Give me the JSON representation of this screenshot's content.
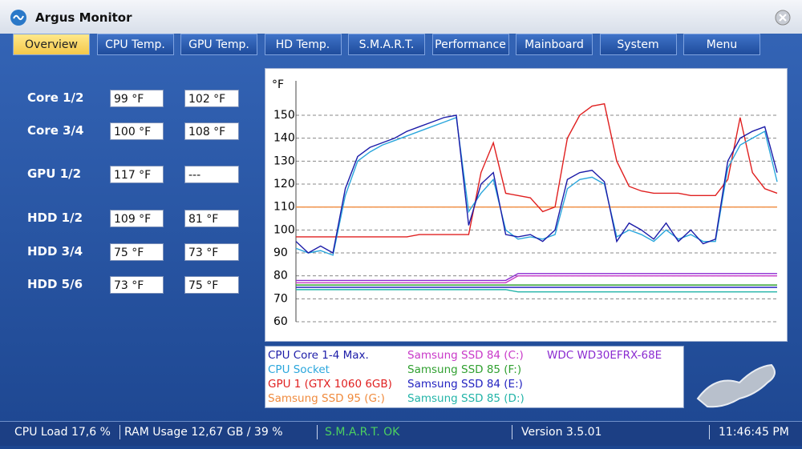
{
  "title": "Argus Monitor",
  "tabs": [
    "Overview",
    "CPU Temp.",
    "GPU Temp.",
    "HD Temp.",
    "S.M.A.R.T.",
    "Performance",
    "Mainboard",
    "System",
    "Menu"
  ],
  "sensors": [
    {
      "label": "Core 1/2",
      "values": [
        "99 °F",
        "102 °F"
      ]
    },
    {
      "label": "Core 3/4",
      "values": [
        "100 °F",
        "108 °F"
      ]
    },
    {
      "label": "GPU 1/2",
      "values": [
        "117 °F",
        "---"
      ]
    },
    {
      "label": "HDD 1/2",
      "values": [
        "109 °F",
        "81 °F"
      ]
    },
    {
      "label": "HDD 3/4",
      "values": [
        "75 °F",
        "73 °F"
      ]
    },
    {
      "label": "HDD 5/6",
      "values": [
        "73 °F",
        "75 °F"
      ]
    }
  ],
  "chart_data": {
    "type": "line",
    "ylabel": "°F",
    "ylim": [
      60,
      165
    ],
    "yticks": [
      60,
      70,
      80,
      90,
      100,
      110,
      120,
      130,
      140,
      150
    ],
    "grid": true,
    "series": [
      {
        "name": "CPU Core 1-4 Max.",
        "color": "#1c1ca8",
        "values": [
          95,
          90,
          93,
          90,
          118,
          132,
          136,
          138,
          140,
          143,
          145,
          147,
          149,
          150,
          102,
          120,
          125,
          98,
          97,
          98,
          95,
          100,
          122,
          125,
          126,
          121,
          95,
          103,
          100,
          96,
          103,
          95,
          100,
          94,
          96,
          130,
          140,
          143,
          145,
          125
        ]
      },
      {
        "name": "CPU Socket",
        "color": "#2aa6dc",
        "values": [
          92,
          90,
          91,
          89,
          115,
          130,
          134,
          137,
          139,
          141,
          143,
          145,
          147,
          149,
          108,
          116,
          122,
          100,
          96,
          97,
          96,
          98,
          118,
          122,
          123,
          120,
          97,
          100,
          98,
          95,
          100,
          96,
          98,
          95,
          95,
          127,
          137,
          140,
          143,
          121
        ]
      },
      {
        "name": "GPU 1 (GTX 1060 6GB)",
        "color": "#e02020",
        "values": [
          97,
          97,
          97,
          97,
          97,
          97,
          97,
          97,
          97,
          97,
          98,
          98,
          98,
          98,
          98,
          125,
          138,
          116,
          115,
          114,
          108,
          110,
          140,
          150,
          154,
          155,
          130,
          119,
          117,
          116,
          116,
          116,
          115,
          115,
          115,
          122,
          149,
          125,
          118,
          116
        ]
      },
      {
        "name": "Samsung SSD 95 (G:)",
        "color": "#f08a3c",
        "values": [
          110,
          110,
          110,
          110,
          110,
          110,
          110,
          110,
          110,
          110,
          110,
          110,
          110,
          110,
          110,
          110,
          110,
          110,
          110,
          110,
          110,
          110,
          110,
          110,
          110,
          110,
          110,
          110,
          110,
          110,
          110,
          110,
          110,
          110,
          110,
          110,
          110,
          110,
          110,
          110
        ]
      },
      {
        "name": "Samsung SSD 84 (C:)",
        "color": "#c838c8",
        "values": [
          77,
          77,
          77,
          77,
          77,
          77,
          77,
          77,
          77,
          77,
          77,
          77,
          77,
          77,
          77,
          77,
          77,
          77,
          80,
          80,
          80,
          80,
          80,
          80,
          80,
          80,
          80,
          80,
          80,
          80,
          80,
          80,
          80,
          80,
          80,
          80,
          80,
          80,
          80,
          80
        ]
      },
      {
        "name": "Samsung SSD 85 (F:)",
        "color": "#30a030",
        "values": [
          76,
          76,
          76,
          76,
          76,
          76,
          76,
          76,
          76,
          76,
          76,
          76,
          76,
          76,
          76,
          76,
          76,
          76,
          76,
          76,
          76,
          76,
          76,
          76,
          76,
          76,
          76,
          76,
          76,
          76,
          76,
          76,
          76,
          76,
          76,
          76,
          76,
          76,
          76,
          76
        ]
      },
      {
        "name": "Samsung SSD 84 (E:)",
        "color": "#2222c0",
        "values": [
          75,
          75,
          75,
          75,
          75,
          75,
          75,
          75,
          75,
          75,
          75,
          75,
          75,
          75,
          75,
          75,
          75,
          75,
          75,
          75,
          75,
          75,
          75,
          75,
          75,
          75,
          75,
          75,
          75,
          75,
          75,
          75,
          75,
          75,
          75,
          75,
          75,
          75,
          75,
          75
        ]
      },
      {
        "name": "Samsung SSD 85 (D:)",
        "color": "#22b4a8",
        "values": [
          74,
          74,
          74,
          74,
          74,
          74,
          74,
          74,
          74,
          74,
          74,
          74,
          74,
          74,
          74,
          74,
          74,
          74,
          73,
          73,
          73,
          73,
          73,
          73,
          73,
          73,
          73,
          73,
          73,
          73,
          73,
          73,
          73,
          73,
          73,
          73,
          73,
          73,
          73,
          73
        ]
      },
      {
        "name": "WDC WD30EFRX-68E",
        "color": "#8a2ad0",
        "values": [
          78,
          78,
          78,
          78,
          78,
          78,
          78,
          78,
          78,
          78,
          78,
          78,
          78,
          78,
          78,
          78,
          78,
          78,
          81,
          81,
          81,
          81,
          81,
          81,
          81,
          81,
          81,
          81,
          81,
          81,
          81,
          81,
          81,
          81,
          81,
          81,
          81,
          81,
          81,
          81
        ]
      }
    ]
  },
  "status": [
    "CPU Load 17,6 %",
    "RAM Usage 12,67 GB / 39 %",
    "S.M.A.R.T. OK",
    "Version 3.5.01",
    "11:46:45 PM"
  ]
}
